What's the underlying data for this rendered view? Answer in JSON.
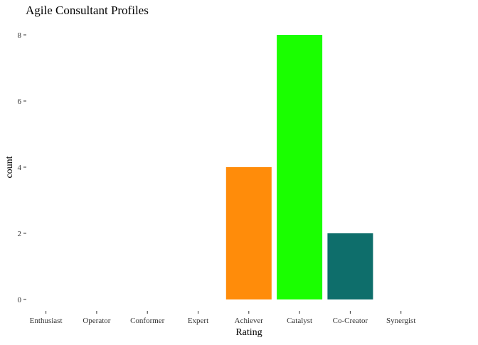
{
  "chart_data": {
    "type": "bar",
    "title": "Agile Consultant Profiles",
    "xlabel": "Rating",
    "ylabel": "count",
    "categories": [
      "Enthusiast",
      "Operator",
      "Conformer",
      "Expert",
      "Achiever",
      "Catalyst",
      "Co-Creator",
      "Synergist"
    ],
    "values": [
      0,
      0,
      0,
      0,
      4,
      8,
      2,
      0
    ],
    "bar_colors": [
      "#ff9933",
      "#ff9933",
      "#ff9933",
      "#ff9933",
      "#ff8c0a",
      "#1aff00",
      "#0e6e6b",
      "#ff9933"
    ],
    "ylim": [
      0,
      8
    ],
    "yticks": [
      0,
      2,
      4,
      6,
      8
    ],
    "grid": false,
    "legend": "none"
  }
}
